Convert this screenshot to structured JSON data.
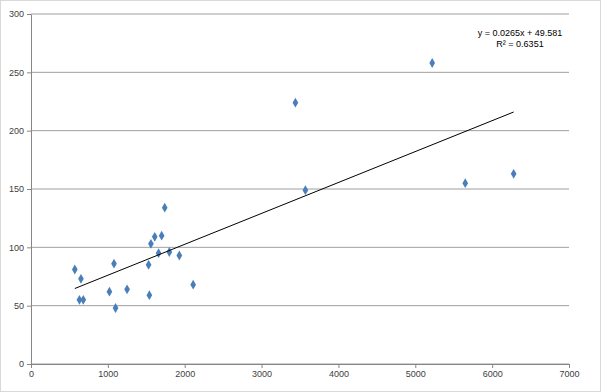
{
  "chart_data": {
    "type": "scatter",
    "x": [
      570,
      650,
      630,
      680,
      1020,
      1080,
      1100,
      1250,
      1530,
      1560,
      1540,
      1610,
      1660,
      1700,
      1740,
      1800,
      1930,
      2110,
      3440,
      3570,
      5220,
      5650,
      6280
    ],
    "values": [
      81,
      73,
      55,
      55,
      62,
      86,
      48,
      64,
      85,
      103,
      59,
      109,
      95,
      110,
      134,
      96,
      93,
      68,
      224,
      149,
      258,
      155,
      163
    ],
    "color": "#4a7ebb",
    "marker": "diamond",
    "xlim": [
      0,
      7000
    ],
    "xticks": [
      0,
      1000,
      2000,
      3000,
      4000,
      5000,
      6000,
      7000
    ],
    "ylim": [
      0,
      300
    ],
    "yticks": [
      0,
      50,
      100,
      150,
      200,
      250,
      300
    ],
    "grid": true,
    "trendline": {
      "x": [
        570,
        6280
      ],
      "y": [
        64.7,
        216.0
      ]
    },
    "annotations": [
      "y = 0.0265x + 49.581",
      "R² = 0.6351"
    ]
  }
}
